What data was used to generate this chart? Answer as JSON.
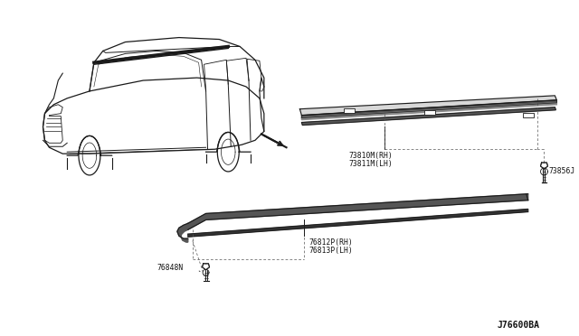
{
  "bg_color": "#ffffff",
  "diagram_code": "J76600BA",
  "line_color": "#1a1a1a",
  "dashed_color": "#555555",
  "text_color": "#111111",
  "upper_moulding_label1": "73810M(RH)",
  "upper_moulding_label2": "73811M(LH)",
  "lower_moulding_label1": "76812P(RH)",
  "lower_moulding_label2": "76813P(LH)",
  "fastener_label": "73856J",
  "clip_label": "76848N"
}
